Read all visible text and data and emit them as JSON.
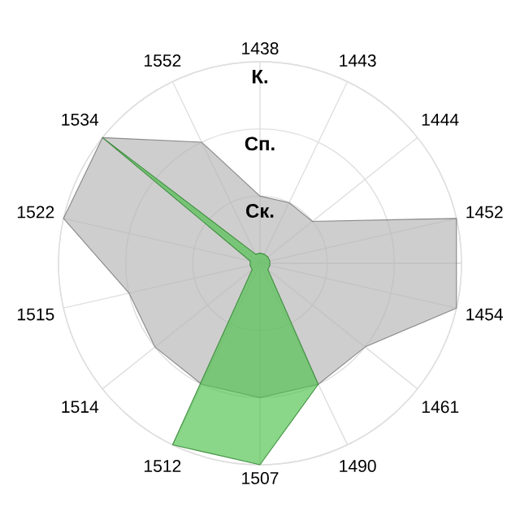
{
  "chart_data": {
    "type": "radar",
    "categories": [
      "1438",
      "1443",
      "1444",
      "1452",
      "1454",
      "1461",
      "1490",
      "1507",
      "1512",
      "1514",
      "1515",
      "1522",
      "1534",
      "1552"
    ],
    "series": [
      {
        "color": "#b4b4b4",
        "values": [
          1,
          1,
          1,
          3,
          3,
          2,
          2,
          2,
          2,
          2,
          2,
          3,
          3,
          2
        ]
      },
      {
        "color": "#4cc24c",
        "values": [
          0.15,
          0.15,
          0.15,
          0.15,
          0.15,
          0.15,
          2,
          3,
          3,
          0.15,
          0.15,
          0.15,
          3,
          0.15
        ]
      }
    ],
    "ylim": [
      0,
      3
    ],
    "yticks": [
      {
        "value": 1,
        "label": "Ск."
      },
      {
        "value": 2,
        "label": "Сп."
      },
      {
        "value": 3,
        "label": "К."
      }
    ],
    "grid": true
  }
}
